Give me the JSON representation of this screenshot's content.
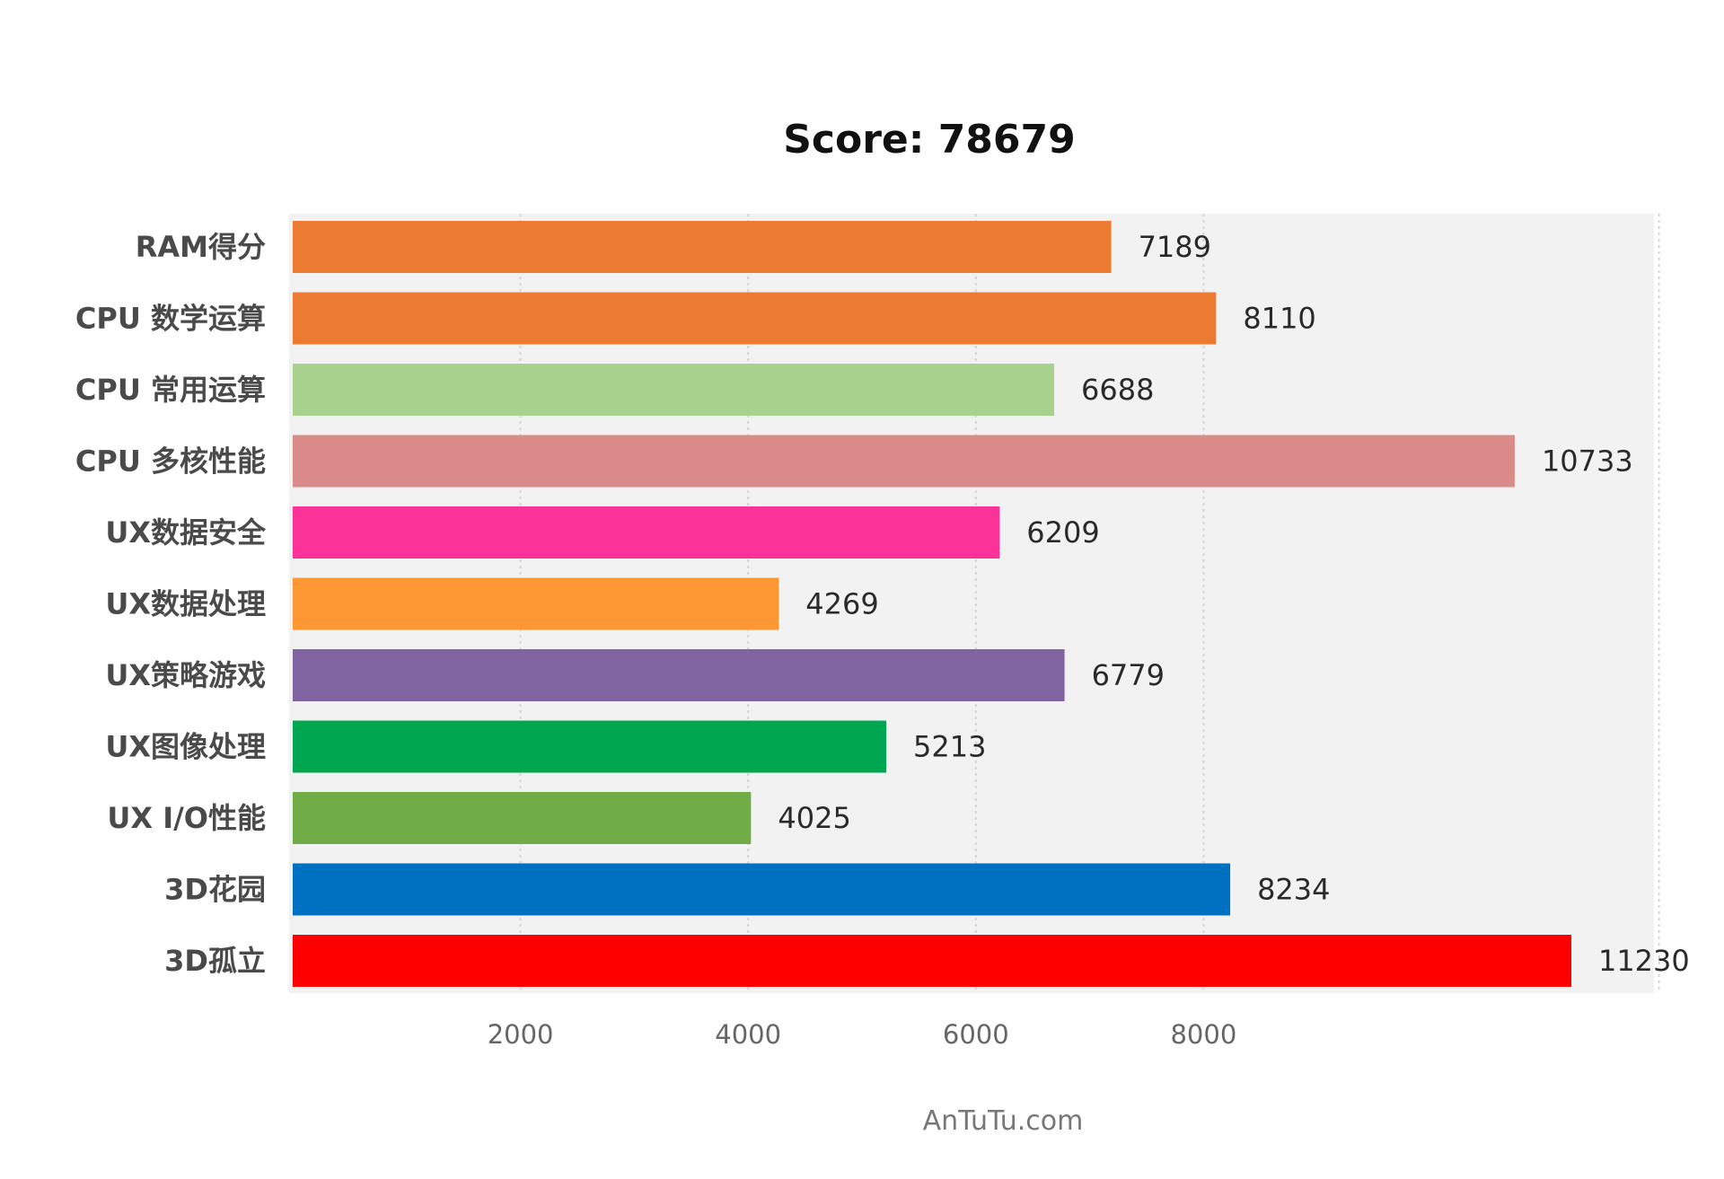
{
  "chart_data": {
    "type": "bar",
    "orientation": "horizontal",
    "title": "Score: 78679",
    "categories": [
      "RAM得分",
      "CPU 数学运算",
      "CPU 常用运算",
      "CPU 多核性能",
      "UX数据安全",
      "UX数据处理",
      "UX策略游戏",
      "UX图像处理",
      "UX I/O性能",
      "3D花园",
      "3D孤立"
    ],
    "values": [
      7189,
      8110,
      6688,
      10733,
      6209,
      4269,
      6779,
      5213,
      4025,
      8234,
      11230
    ],
    "value_labels": [
      "7189",
      "8110",
      "6688",
      "10733",
      "6209",
      "4269",
      "6779",
      "5213",
      "4025",
      "8234",
      "11230"
    ],
    "colors": [
      "#ec7a30",
      "#ec7a30",
      "#a9d18e",
      "#da8a88",
      "#fb3399",
      "#fc9733",
      "#8064a2",
      "#00a650",
      "#70ad47",
      "#0070c0",
      "#ff0000"
    ],
    "xticks": [
      2000,
      4000,
      6000,
      8000
    ],
    "xtick_labels": [
      "2000",
      "4000",
      "6000",
      "8000"
    ],
    "xlim": [
      0,
      12000
    ],
    "grid": true,
    "plot_background": "#f2f2f2",
    "xlabel": "",
    "ylabel": ""
  },
  "credit": "AnTuTu.com"
}
